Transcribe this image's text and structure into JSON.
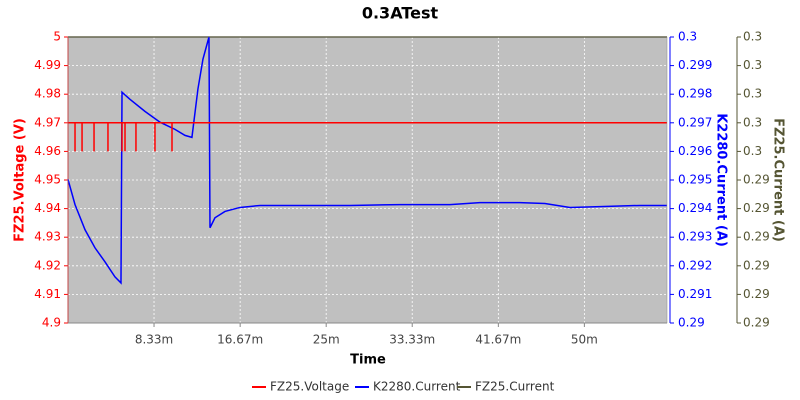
{
  "chart_data": {
    "type": "line",
    "title": "0.3ATest",
    "x_label": "Time",
    "y_label": "FZ25.Voltage (V)",
    "y2_label": "K2280.Current (A)",
    "y3_label": "FZ25.Current (A)",
    "xlim": [
      0,
      58
    ],
    "xticks": [
      {
        "value": 8.33,
        "label": "8.33m"
      },
      {
        "value": 16.67,
        "label": "16.67m"
      },
      {
        "value": 25,
        "label": "25m"
      },
      {
        "value": 33.33,
        "label": "33.33m"
      },
      {
        "value": 41.67,
        "label": "41.67m"
      },
      {
        "value": 50,
        "label": "50m"
      }
    ],
    "ylim": [
      4.9,
      5
    ],
    "yticks": [
      4.9,
      4.91,
      4.92,
      4.93,
      4.94,
      4.95,
      4.96,
      4.97,
      4.98,
      4.99,
      5
    ],
    "y2lim": [
      0.29,
      0.3
    ],
    "y2ticks": [
      0.29,
      0.291,
      0.292,
      0.293,
      0.294,
      0.295,
      0.296,
      0.297,
      0.298,
      0.299,
      0.3
    ],
    "y3lim": [
      0.2895,
      0.2995
    ],
    "y3ticks": [
      {
        "value": 0.2895,
        "label": "0.29"
      },
      {
        "value": 0.2905,
        "label": "0.29"
      },
      {
        "value": 0.2915,
        "label": "0.29"
      },
      {
        "value": 0.2925,
        "label": "0.29"
      },
      {
        "value": 0.2935,
        "label": "0.29"
      },
      {
        "value": 0.2945,
        "label": "0.29"
      },
      {
        "value": 0.2955,
        "label": "0.3"
      },
      {
        "value": 0.2965,
        "label": "0.3"
      },
      {
        "value": 0.2975,
        "label": "0.3"
      },
      {
        "value": 0.2985,
        "label": "0.3"
      },
      {
        "value": 0.2995,
        "label": "0.3"
      }
    ],
    "grid": true,
    "legend": "bottom",
    "series": [
      {
        "name": "FZ25.Voltage",
        "color": "#ff0000",
        "axis": "y",
        "x": [
          0,
          0.68,
          0.68,
          0.68,
          1.36,
          1.36,
          1.36,
          2.52,
          2.52,
          2.52,
          3.87,
          3.87,
          3.87,
          5.23,
          5.23,
          5.23,
          5.52,
          5.52,
          5.52,
          6.58,
          6.58,
          6.58,
          8.42,
          8.42,
          8.42,
          10.07,
          10.07,
          10.07,
          58
        ],
        "values": [
          4.97,
          4.97,
          4.96,
          4.97,
          4.97,
          4.96,
          4.97,
          4.97,
          4.96,
          4.97,
          4.97,
          4.96,
          4.97,
          4.97,
          4.96,
          4.97,
          4.97,
          4.96,
          4.97,
          4.97,
          4.96,
          4.97,
          4.97,
          4.96,
          4.97,
          4.97,
          4.96,
          4.97,
          4.97
        ]
      },
      {
        "name": "K2280.Current",
        "color": "#0000ff",
        "axis": "y2",
        "x": [
          0,
          0.68,
          1.65,
          2.61,
          3.58,
          4.55,
          5.13,
          5.23,
          6.0,
          7.45,
          8.91,
          10.36,
          11.33,
          12.0,
          12.58,
          13.07,
          13.65,
          13.75,
          14.23,
          15.2,
          16.65,
          18.59,
          22.46,
          27.3,
          32.14,
          36.98,
          39.88,
          43.75,
          46.18,
          48.6,
          51.5,
          55.37,
          57.99
        ],
        "values": [
          0.29502,
          0.29414,
          0.29326,
          0.29263,
          0.29214,
          0.29161,
          0.2914,
          0.29807,
          0.29782,
          0.2974,
          0.29702,
          0.29677,
          0.29656,
          0.29649,
          0.29818,
          0.29923,
          0.3,
          0.29333,
          0.29368,
          0.2939,
          0.29404,
          0.29411,
          0.29411,
          0.29411,
          0.29414,
          0.29414,
          0.29421,
          0.29421,
          0.29418,
          0.29404,
          0.29407,
          0.29411,
          0.29411
        ]
      },
      {
        "name": "FZ25.Current",
        "color": "#555533",
        "axis": "y3",
        "x": [
          0,
          58
        ],
        "values": [
          0.2995,
          0.2995
        ]
      }
    ]
  }
}
